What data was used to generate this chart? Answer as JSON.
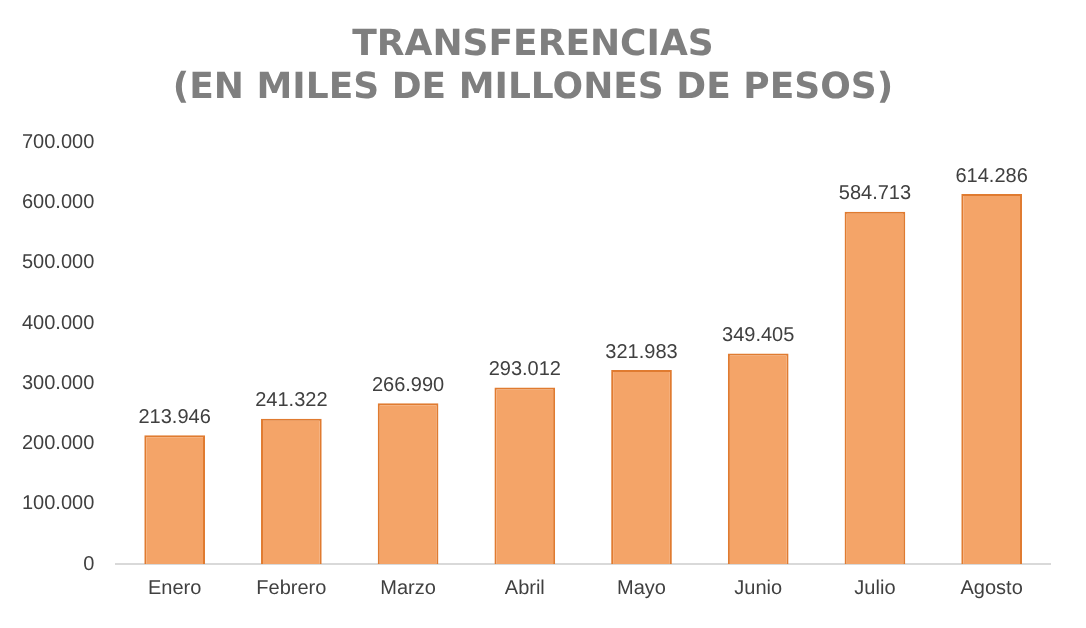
{
  "chart_data": {
    "type": "bar",
    "title": "TRANSFERENCIAS\n(EN MILES DE MILLONES DE PESOS)",
    "categories": [
      "Enero",
      "Febrero",
      "Marzo",
      "Abril",
      "Mayo",
      "Junio",
      "Julio",
      "Agosto"
    ],
    "values": [
      213946,
      241322,
      266990,
      293012,
      321983,
      349405,
      584713,
      614286
    ],
    "value_labels": [
      "213.946",
      "241.322",
      "266.990",
      "293.012",
      "321.983",
      "349.405",
      "584.713",
      "614.286"
    ],
    "color": "#f4a468",
    "ylim": [
      0,
      700000
    ],
    "yticks": [
      0,
      {
        "value": 100000,
        "label": "100.000"
      },
      {
        "value": 200000,
        "label": "200.000"
      },
      {
        "value": 300000,
        "label": "300.000"
      },
      {
        "value": 400000,
        "label": "400.000"
      },
      {
        "value": 500000,
        "label": "500.000"
      },
      {
        "value": 600000,
        "label": "600.000"
      },
      {
        "value": 700000,
        "label": "700.000"
      }
    ],
    "grid": false,
    "legend": false
  }
}
